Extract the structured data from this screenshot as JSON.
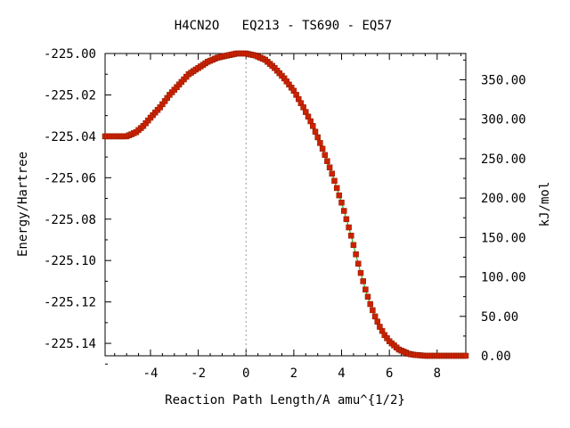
{
  "chart_data": {
    "type": "scatter",
    "title": "H4CN2O   EQ213 - TS690 - EQ57",
    "xlabel": "Reaction Path Length/A amu^{1/2}",
    "ylabel": "Energy/Hartree",
    "y2label": "kJ/mol",
    "xlim": [
      -5.9,
      9.2
    ],
    "ylim": [
      -225.146,
      -225.0
    ],
    "y2lim": [
      0.0,
      383.3
    ],
    "x_ticks": [
      "-4",
      "-2",
      "0",
      "2",
      "4",
      "6",
      "8"
    ],
    "x_tick_values": [
      -4,
      -2,
      0,
      2,
      4,
      6,
      8
    ],
    "y_ticks": [
      "-225.00",
      "-225.02",
      "-225.04",
      "-225.06",
      "-225.08",
      "-225.10",
      "-225.12",
      "-225.14"
    ],
    "y_tick_values": [
      -225.0,
      -225.02,
      -225.04,
      -225.06,
      -225.08,
      -225.1,
      -225.12,
      -225.14
    ],
    "y2_ticks": [
      "0.00",
      "50.00",
      "100.00",
      "150.00",
      "200.00",
      "250.00",
      "300.00",
      "350.00"
    ],
    "y2_tick_values": [
      0,
      50,
      100,
      150,
      200,
      250,
      300,
      350
    ],
    "grid": false,
    "ts_marker_x": 0.0,
    "series": [
      {
        "color": "#cc2200",
        "line_color": "#00aa00",
        "x": [
          -5.9,
          -5.5,
          -5.0,
          -4.6,
          -4.3,
          -4.0,
          -3.6,
          -3.2,
          -2.8,
          -2.4,
          -2.0,
          -1.6,
          -1.2,
          -0.8,
          -0.4,
          0.0,
          0.4,
          0.8,
          1.2,
          1.6,
          2.0,
          2.4,
          2.8,
          3.2,
          3.6,
          4.0,
          4.2,
          4.4,
          4.6,
          4.8,
          5.0,
          5.2,
          5.4,
          5.6,
          5.8,
          6.0,
          6.2,
          6.4,
          6.6,
          6.8,
          7.0,
          7.5,
          8.0,
          8.5,
          9.2
        ],
        "y": [
          -225.04,
          -225.04,
          -225.04,
          -225.038,
          -225.035,
          -225.031,
          -225.026,
          -225.02,
          -225.015,
          -225.01,
          -225.007,
          -225.004,
          -225.002,
          -225.001,
          -225.0,
          -225.0,
          -225.001,
          -225.003,
          -225.007,
          -225.012,
          -225.018,
          -225.026,
          -225.035,
          -225.046,
          -225.058,
          -225.072,
          -225.08,
          -225.088,
          -225.097,
          -225.106,
          -225.114,
          -225.121,
          -225.127,
          -225.132,
          -225.136,
          -225.139,
          -225.141,
          -225.143,
          -225.144,
          -225.145,
          -225.1455,
          -225.146,
          -225.146,
          -225.146,
          -225.146
        ]
      }
    ]
  }
}
